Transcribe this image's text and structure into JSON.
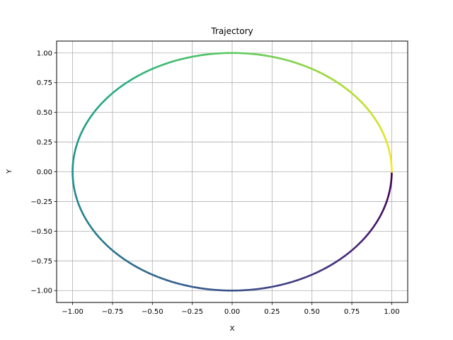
{
  "chart_data": {
    "type": "line",
    "title": "Trajectory",
    "xlabel": "X",
    "ylabel": "Y",
    "xlim": [
      -1.1,
      1.1
    ],
    "ylim": [
      -1.1,
      1.1
    ],
    "xticks": [
      "−1.00",
      "−0.75",
      "−0.50",
      "−0.25",
      "0.00",
      "0.25",
      "0.50",
      "0.75",
      "1.00"
    ],
    "yticks": [
      "−1.00",
      "−0.75",
      "−0.50",
      "−0.25",
      "0.00",
      "0.25",
      "0.50",
      "0.75",
      "1.00"
    ],
    "grid": true,
    "colormap": "viridis",
    "trajectory": {
      "shape": "unit circle",
      "start": [
        1.0,
        0.0
      ],
      "direction": "clockwise",
      "x": [
        1.0,
        0.9239,
        0.7071,
        0.3827,
        0.0,
        -0.3827,
        -0.7071,
        -0.9239,
        -1.0,
        -0.9239,
        -0.7071,
        -0.3827,
        0.0,
        0.3827,
        0.7071,
        0.9239,
        1.0
      ],
      "y": [
        0.0,
        -0.3827,
        -0.7071,
        -0.9239,
        -1.0,
        -0.9239,
        -0.7071,
        -0.3827,
        0.0,
        0.3827,
        0.7071,
        0.9239,
        1.0,
        0.9239,
        0.7071,
        0.3827,
        0.0
      ]
    }
  }
}
